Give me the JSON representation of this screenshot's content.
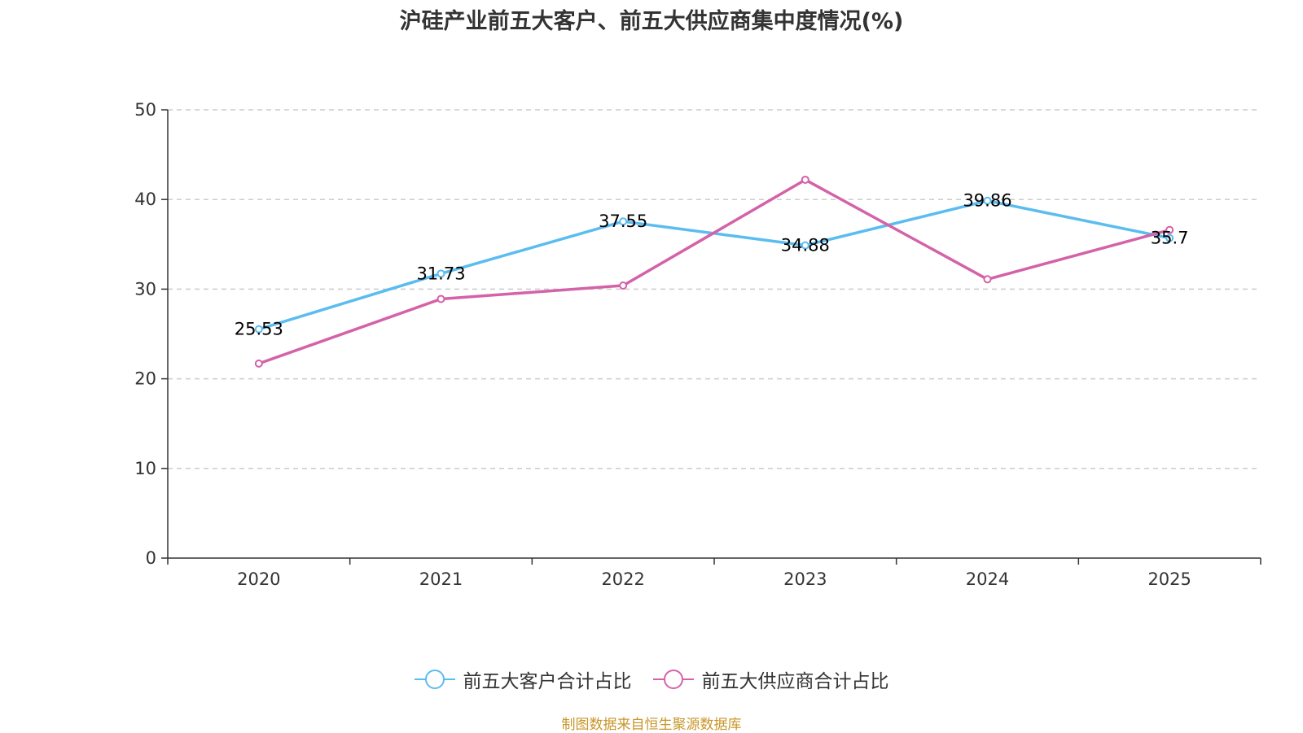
{
  "chart_data": {
    "type": "line",
    "title": "沪硅产业前五大客户、前五大供应商集中度情况(%)",
    "categories": [
      "2020",
      "2021",
      "2022",
      "2023",
      "2024",
      "2025"
    ],
    "ylim": [
      0,
      50
    ],
    "yticks": [
      0,
      10,
      20,
      30,
      40,
      50
    ],
    "grid": true,
    "legend_position": "bottom",
    "series": [
      {
        "name": "前五大客户合计占比",
        "color": "#5bbcf0",
        "values": [
          25.53,
          31.73,
          37.55,
          34.88,
          39.86,
          35.7
        ],
        "labels": [
          "25.53",
          "31.73",
          "37.55",
          "34.88",
          "39.86",
          "35.7"
        ]
      },
      {
        "name": "前五大供应商合计占比",
        "color": "#d462a8",
        "values": [
          21.7,
          28.9,
          30.4,
          42.2,
          31.1,
          36.6
        ]
      }
    ]
  },
  "source_note": "制图数据来自恒生聚源数据库"
}
